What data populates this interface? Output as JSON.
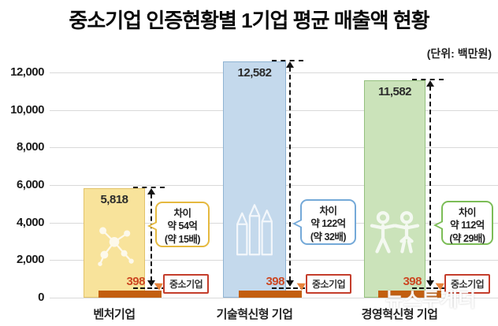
{
  "page": {
    "title": "중소기업 인증현황별 1기업 평균 매출액 현황",
    "unit_label": "(단위: 백만원)",
    "watermark": "뉴스투게더"
  },
  "chart_data": {
    "type": "bar",
    "title": "중소기업 인증현황별 1기업 평균 매출액 현황",
    "unit": "백만원",
    "categories": [
      "벤처기업",
      "기술혁신형 기업",
      "경영혁신형 기업"
    ],
    "series": [
      {
        "name": "인증기업 1기업 평균 매출액",
        "values": [
          5818,
          12582,
          11582
        ],
        "value_labels": [
          "5,818",
          "12,582",
          "11,582"
        ],
        "colors": [
          "#f8e39b",
          "#c4d9ec",
          "#cbe3ba"
        ]
      },
      {
        "name": "중소기업",
        "values": [
          398,
          398,
          398
        ],
        "value_labels": [
          "398",
          "398",
          "398"
        ],
        "color": "#c35f10"
      }
    ],
    "ylim": [
      0,
      12600
    ],
    "yticks": [
      0,
      2000,
      4000,
      6000,
      8000,
      10000,
      12000
    ],
    "ytick_labels": [
      "0",
      "2,000",
      "4,000",
      "6,000",
      "8,000",
      "10,000",
      "12,000"
    ],
    "grid": true,
    "legend_position": "none",
    "sme_tag": "중소기업",
    "annotations": [
      {
        "lines": [
          "차이",
          "약 54억",
          "(약 15배)"
        ],
        "border_color": "#e5b93f"
      },
      {
        "lines": [
          "차이",
          "약 122억",
          "(약 32배)"
        ],
        "border_color": "#74a9d8"
      },
      {
        "lines": [
          "차이",
          "약 112억",
          "(약 29배)"
        ],
        "border_color": "#7cbd57"
      }
    ],
    "icons": [
      "molecule-icon",
      "pencils-icon",
      "people-icon"
    ],
    "accent_colors": {
      "sme_bar": "#c35f10",
      "sme_value_text": "#cc4722",
      "sme_tag_border": "#c43d2b",
      "arrow": "#141414",
      "gridline": "#d9d9d9"
    }
  }
}
